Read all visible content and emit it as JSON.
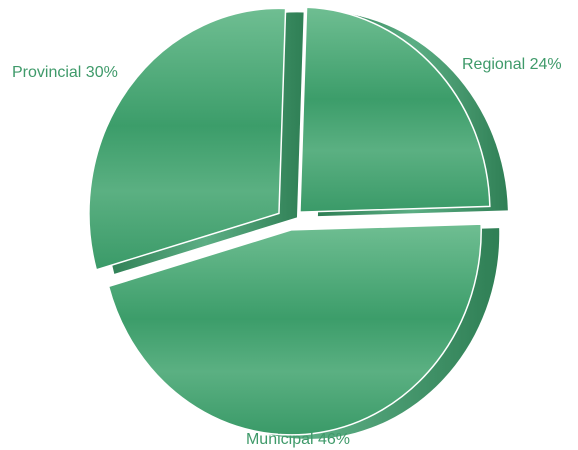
{
  "chart_data": {
    "type": "pie",
    "title": "",
    "slices": [
      {
        "label": "Regional 24%",
        "category": "Regional",
        "value": 24
      },
      {
        "label": "Municipal 46%",
        "category": "Municipal",
        "value": 46
      },
      {
        "label": "Provincial 30%",
        "category": "Provincial",
        "value": 30
      }
    ],
    "exploded": true,
    "colors": {
      "slice": "#3a9a68",
      "slice_light": "#6fbe92",
      "slice_dark": "#2f7f55",
      "label_text": "#3f9a6a"
    }
  }
}
